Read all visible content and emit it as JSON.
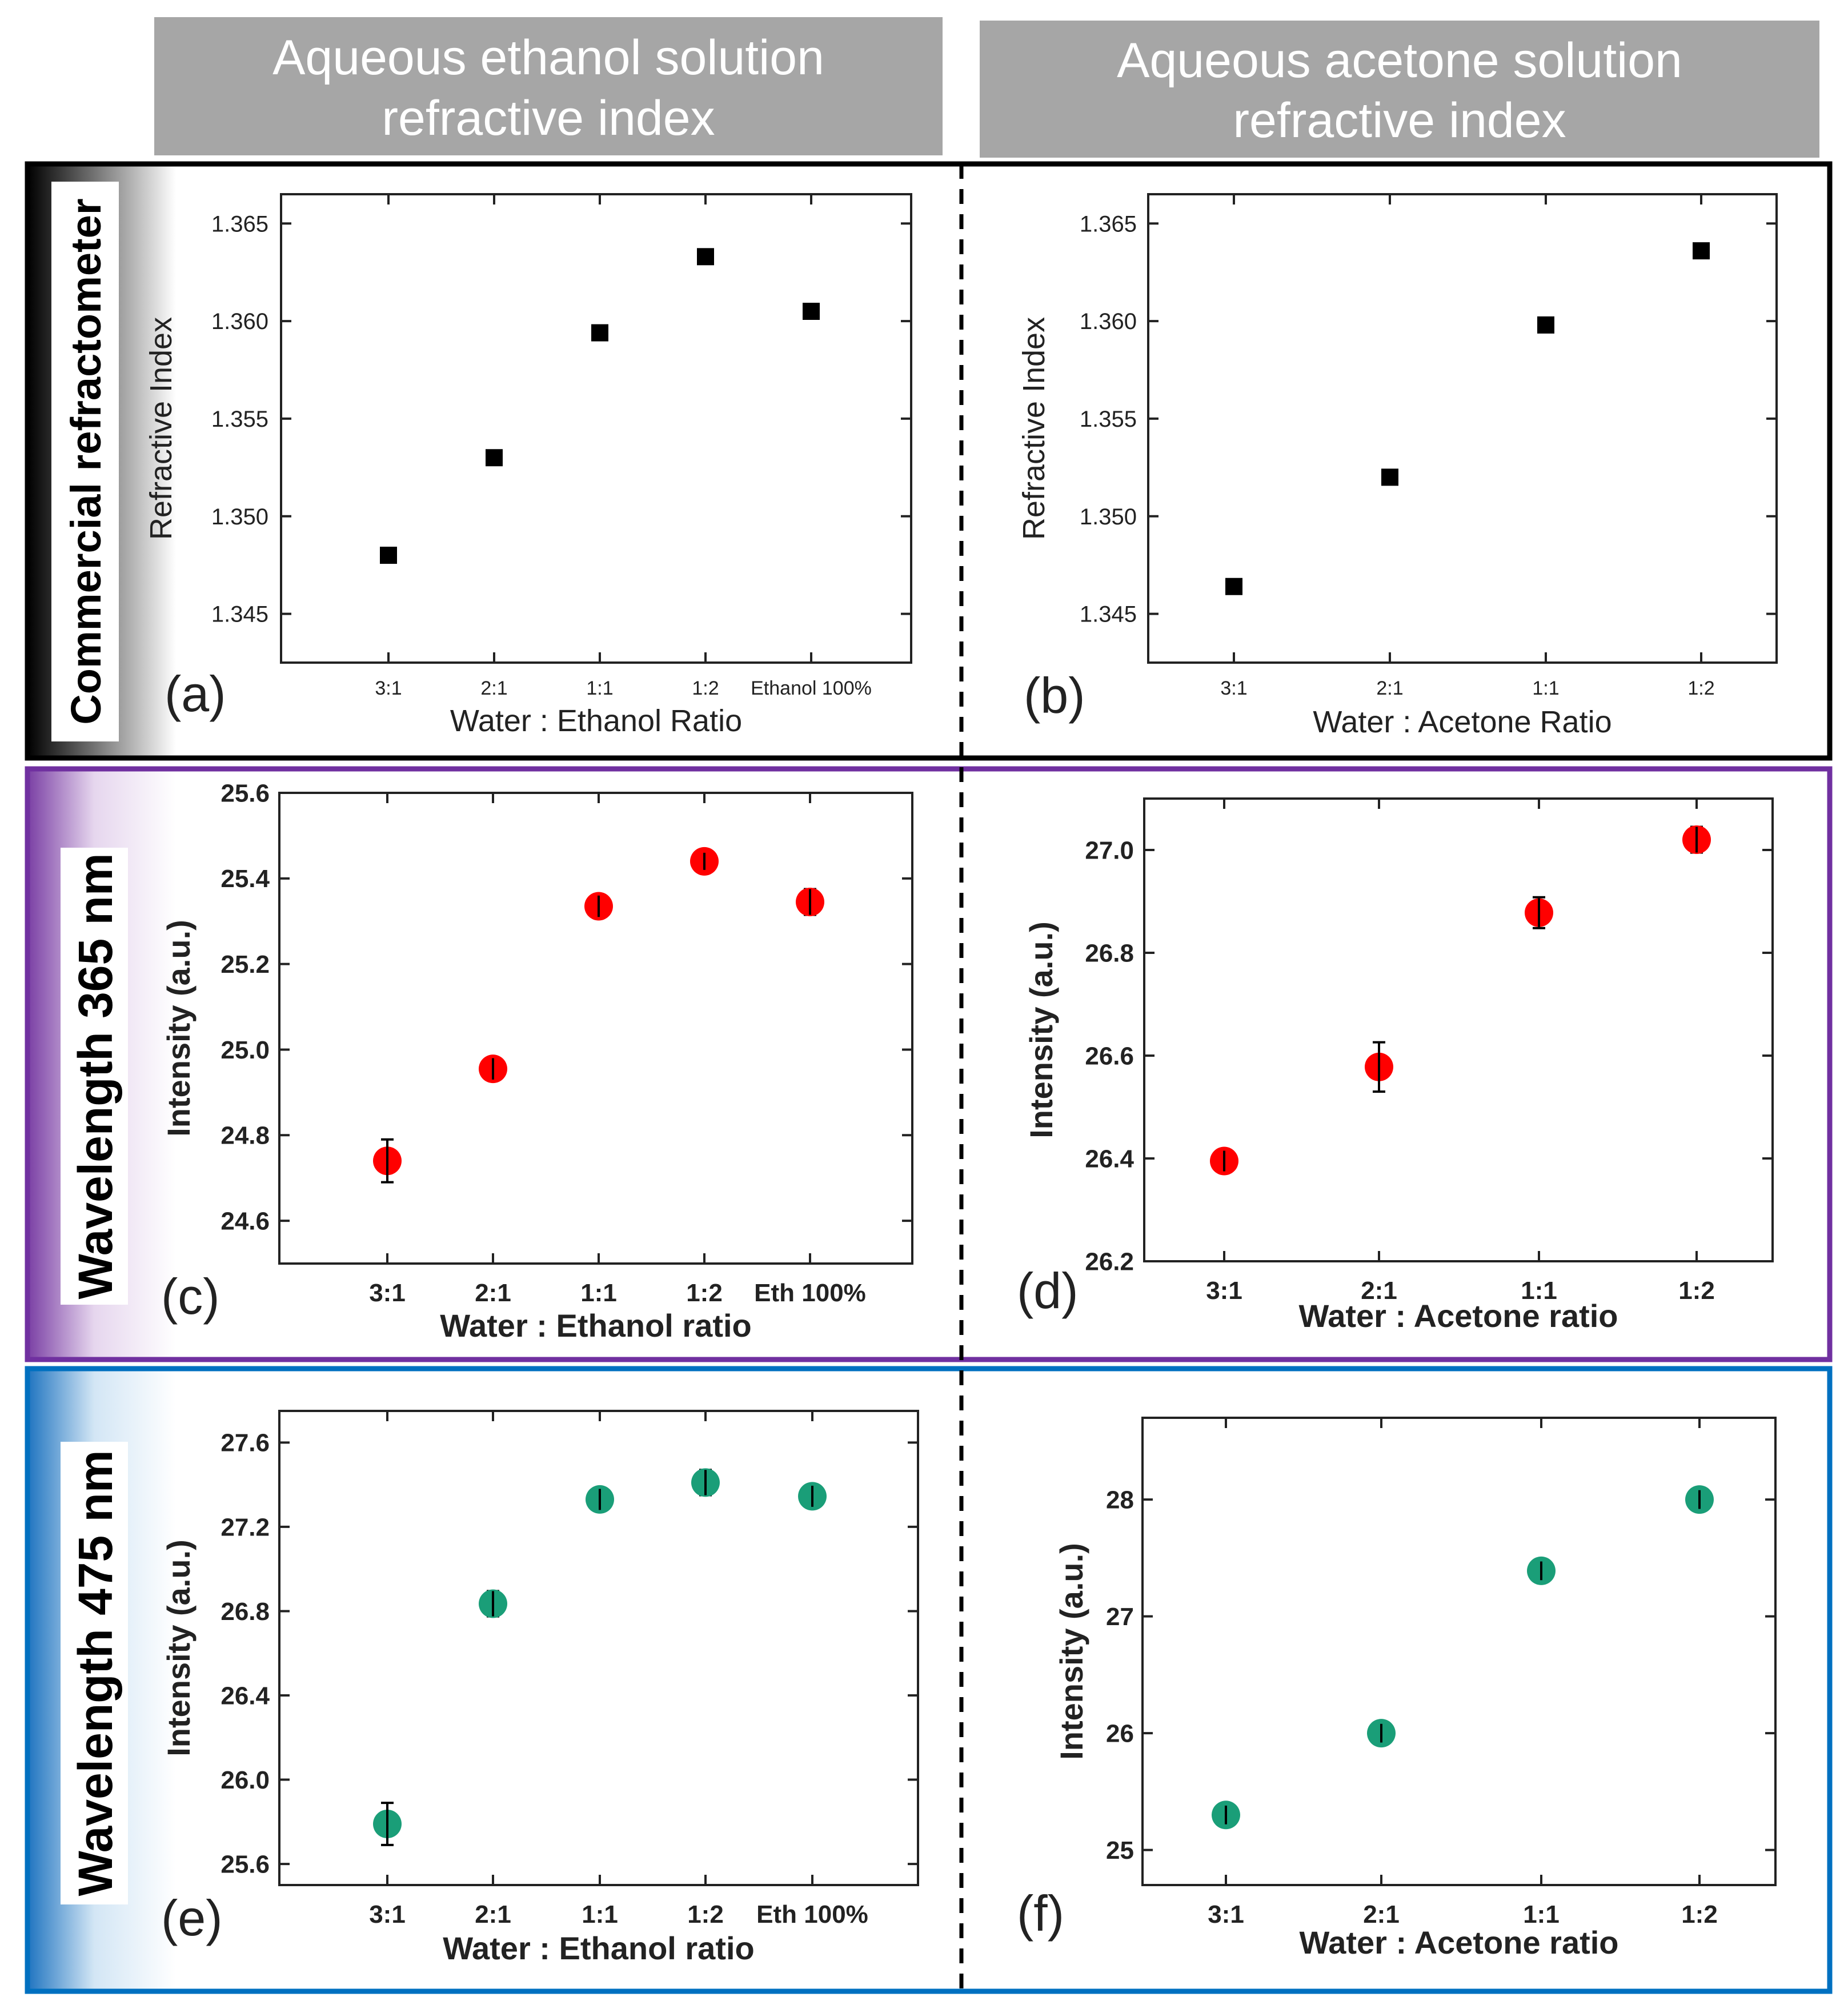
{
  "headers": {
    "left": [
      "Aqueous ethanol solution",
      "refractive index"
    ],
    "right": [
      "Aqueous acetone solution",
      "refractive index"
    ]
  },
  "row_labels": [
    "Commercial refractometer",
    "Wavelength 365 nm",
    "Wavelength 475 nm"
  ],
  "colors": {
    "row1_border": "#000000",
    "row2_border": "#7030a0",
    "row3_border": "#0070c0",
    "marker_black": "#000000",
    "marker_red": "#ff0000",
    "marker_green": "#1a9e78"
  },
  "chart_data": [
    {
      "id": "a",
      "panel_letter": "(a)",
      "type": "scatter",
      "marker": "square",
      "categories": [
        "3:1",
        "2:1",
        "1:1",
        "1:2",
        "Ethanol 100%"
      ],
      "values": [
        1.348,
        1.353,
        1.3594,
        1.3633,
        1.3605
      ],
      "errors": null,
      "ylim": [
        1.3425,
        1.3665
      ],
      "yticks": [
        1.345,
        1.35,
        1.355,
        1.36,
        1.365
      ],
      "ytick_labels": [
        "1.345",
        "1.350",
        "1.355",
        "1.360",
        "1.365"
      ],
      "xlabel": "Water : Ethanol Ratio",
      "ylabel": "Refractive Index"
    },
    {
      "id": "b",
      "panel_letter": "(b)",
      "type": "scatter",
      "marker": "square",
      "categories": [
        "3:1",
        "2:1",
        "1:1",
        "1:2"
      ],
      "values": [
        1.3464,
        1.352,
        1.3598,
        1.3636
      ],
      "errors": null,
      "ylim": [
        1.3425,
        1.3665
      ],
      "yticks": [
        1.345,
        1.35,
        1.355,
        1.36,
        1.365
      ],
      "ytick_labels": [
        "1.345",
        "1.350",
        "1.355",
        "1.360",
        "1.365"
      ],
      "xlabel": "Water : Acetone Ratio",
      "ylabel": "Refractive Index"
    },
    {
      "id": "c",
      "panel_letter": "(c)",
      "type": "scatter",
      "marker": "circle",
      "categories": [
        "3:1",
        "2:1",
        "1:1",
        "1:2",
        "Eth 100%"
      ],
      "values": [
        24.74,
        24.955,
        25.335,
        25.44,
        25.345
      ],
      "errors": [
        0.05,
        0.025,
        0.025,
        0.02,
        0.03
      ],
      "ylim": [
        24.5,
        25.6
      ],
      "yticks": [
        24.6,
        24.8,
        25.0,
        25.2,
        25.4,
        25.6
      ],
      "ytick_labels": [
        "24.6",
        "24.8",
        "25.0",
        "25.2",
        "25.4",
        "25.6"
      ],
      "xlabel": "Water : Ethanol ratio",
      "ylabel": "Intensity (a.u.)"
    },
    {
      "id": "d",
      "panel_letter": "(d)",
      "type": "scatter",
      "marker": "circle",
      "categories": [
        "3:1",
        "2:1",
        "1:1",
        "1:2"
      ],
      "values": [
        26.395,
        26.578,
        26.878,
        27.02
      ],
      "errors": [
        0.02,
        0.048,
        0.03,
        0.025
      ],
      "ylim": [
        26.2,
        27.1
      ],
      "yticks": [
        26.2,
        26.4,
        26.6,
        26.8,
        27.0
      ],
      "ytick_labels": [
        "26.2",
        "26.4",
        "26.6",
        "26.8",
        "27.0"
      ],
      "xlabel": "Water : Acetone ratio",
      "ylabel": "Intensity (a.u.)"
    },
    {
      "id": "e",
      "panel_letter": "(e)",
      "type": "scatter",
      "marker": "circle",
      "categories": [
        "3:1",
        "2:1",
        "1:1",
        "1:2",
        "Eth 100%"
      ],
      "values": [
        25.79,
        26.835,
        27.33,
        27.41,
        27.345
      ],
      "errors": [
        0.1,
        0.06,
        0.05,
        0.06,
        0.05
      ],
      "ylim": [
        25.5,
        27.75
      ],
      "yticks": [
        25.6,
        26.0,
        26.4,
        26.8,
        27.2,
        27.6
      ],
      "ytick_labels": [
        "25.6",
        "26.0",
        "26.4",
        "26.8",
        "27.2",
        "27.6"
      ],
      "xlabel": "Water : Ethanol ratio",
      "ylabel": "Intensity (a.u.)"
    },
    {
      "id": "f",
      "panel_letter": "(f)",
      "type": "scatter",
      "marker": "circle",
      "categories": [
        "3:1",
        "2:1",
        "1:1",
        "1:2"
      ],
      "values": [
        25.3,
        26.0,
        27.39,
        28.0
      ],
      "errors": [
        0.08,
        0.08,
        0.08,
        0.08
      ],
      "ylim": [
        24.7,
        28.7
      ],
      "yticks": [
        25,
        26,
        27,
        28
      ],
      "ytick_labels": [
        "25",
        "26",
        "27",
        "28"
      ],
      "xlabel": "Water : Acetone ratio",
      "ylabel": "Intensity (a.u.)"
    }
  ]
}
